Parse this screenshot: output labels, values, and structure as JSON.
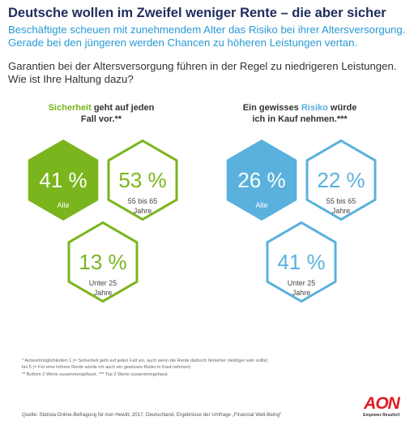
{
  "header": {
    "title": "Deutsche wollen im Zweifel weniger Rente – die aber sicher",
    "subtitle": "Beschäftigte scheuen mit zunehmendem Alter das Risiko bei ihrer Altersversorgung. Gerade bei den jüngeren werden Chancen zu höheren Leistungen vertan.",
    "question": "Garantien bei der Altersversorgung führen in der Regel zu niedrigeren Leistungen. Wie ist Ihre Haltung dazu?"
  },
  "groups": {
    "left": {
      "label_keyword": "Sicherheit",
      "label_rest_1": " geht auf jeden",
      "label_line_2": "Fall vor.**"
    },
    "right": {
      "label_prefix": "Ein gewisses ",
      "label_keyword": "Risiko",
      "label_rest_1": " würde",
      "label_line_2": "ich in Kauf nehmen.***"
    }
  },
  "colors": {
    "green": "#7ab51d",
    "blue": "#5ab1dd",
    "title": "#1e2d5a",
    "subtitle": "#2a9ad6",
    "brand_red": "#e11b22"
  },
  "chart_data": [
    {
      "type": "hexagon-infographic",
      "group": "Sicherheit geht auf jeden Fall vor.**",
      "unit": "%",
      "categories": [
        "Alle",
        "55 bis 65 Jahre",
        "Unter 25 Jahre"
      ],
      "values": [
        41,
        53,
        13
      ],
      "highlight_color": "#7ab51d",
      "filled_category": "Alle"
    },
    {
      "type": "hexagon-infographic",
      "group": "Ein gewisses Risiko würde ich in Kauf nehmen.***",
      "unit": "%",
      "categories": [
        "Alle",
        "55 bis 65 Jahre",
        "Unter 25 Jahre"
      ],
      "values": [
        26,
        22,
        41
      ],
      "highlight_color": "#5ab1dd",
      "filled_category": "Alle"
    }
  ],
  "hex_labels": {
    "all": "Alle",
    "age_55_65_line1": "55 bis 65",
    "age_55_65_line2": "Jahre",
    "under25_line1": "Unter 25",
    "under25_line2": "Jahre"
  },
  "footnotes": {
    "line1": "* Antwortmöglichkeiten 1 (= Sicherheit geht auf jeden Fall vor, auch wenn die Rente dadurch hinterher niedriger sein sollte)",
    "line2": "bis 5 (= Für eine höhere Rente würde ich auch ein gewisses Risiko in Kauf nehmen)",
    "line3": "** Bottom 2 Werte zusammengefasst, *** Top 2 Werte zusammengefasst"
  },
  "source": "Quelle: Statista Online-Befragung für Aon Hewitt, 2017, Deutschland, Ergebnisse der Umfrage „Financial Well-Being“",
  "logo": {
    "name": "AON",
    "tagline": "Empower Results®"
  }
}
